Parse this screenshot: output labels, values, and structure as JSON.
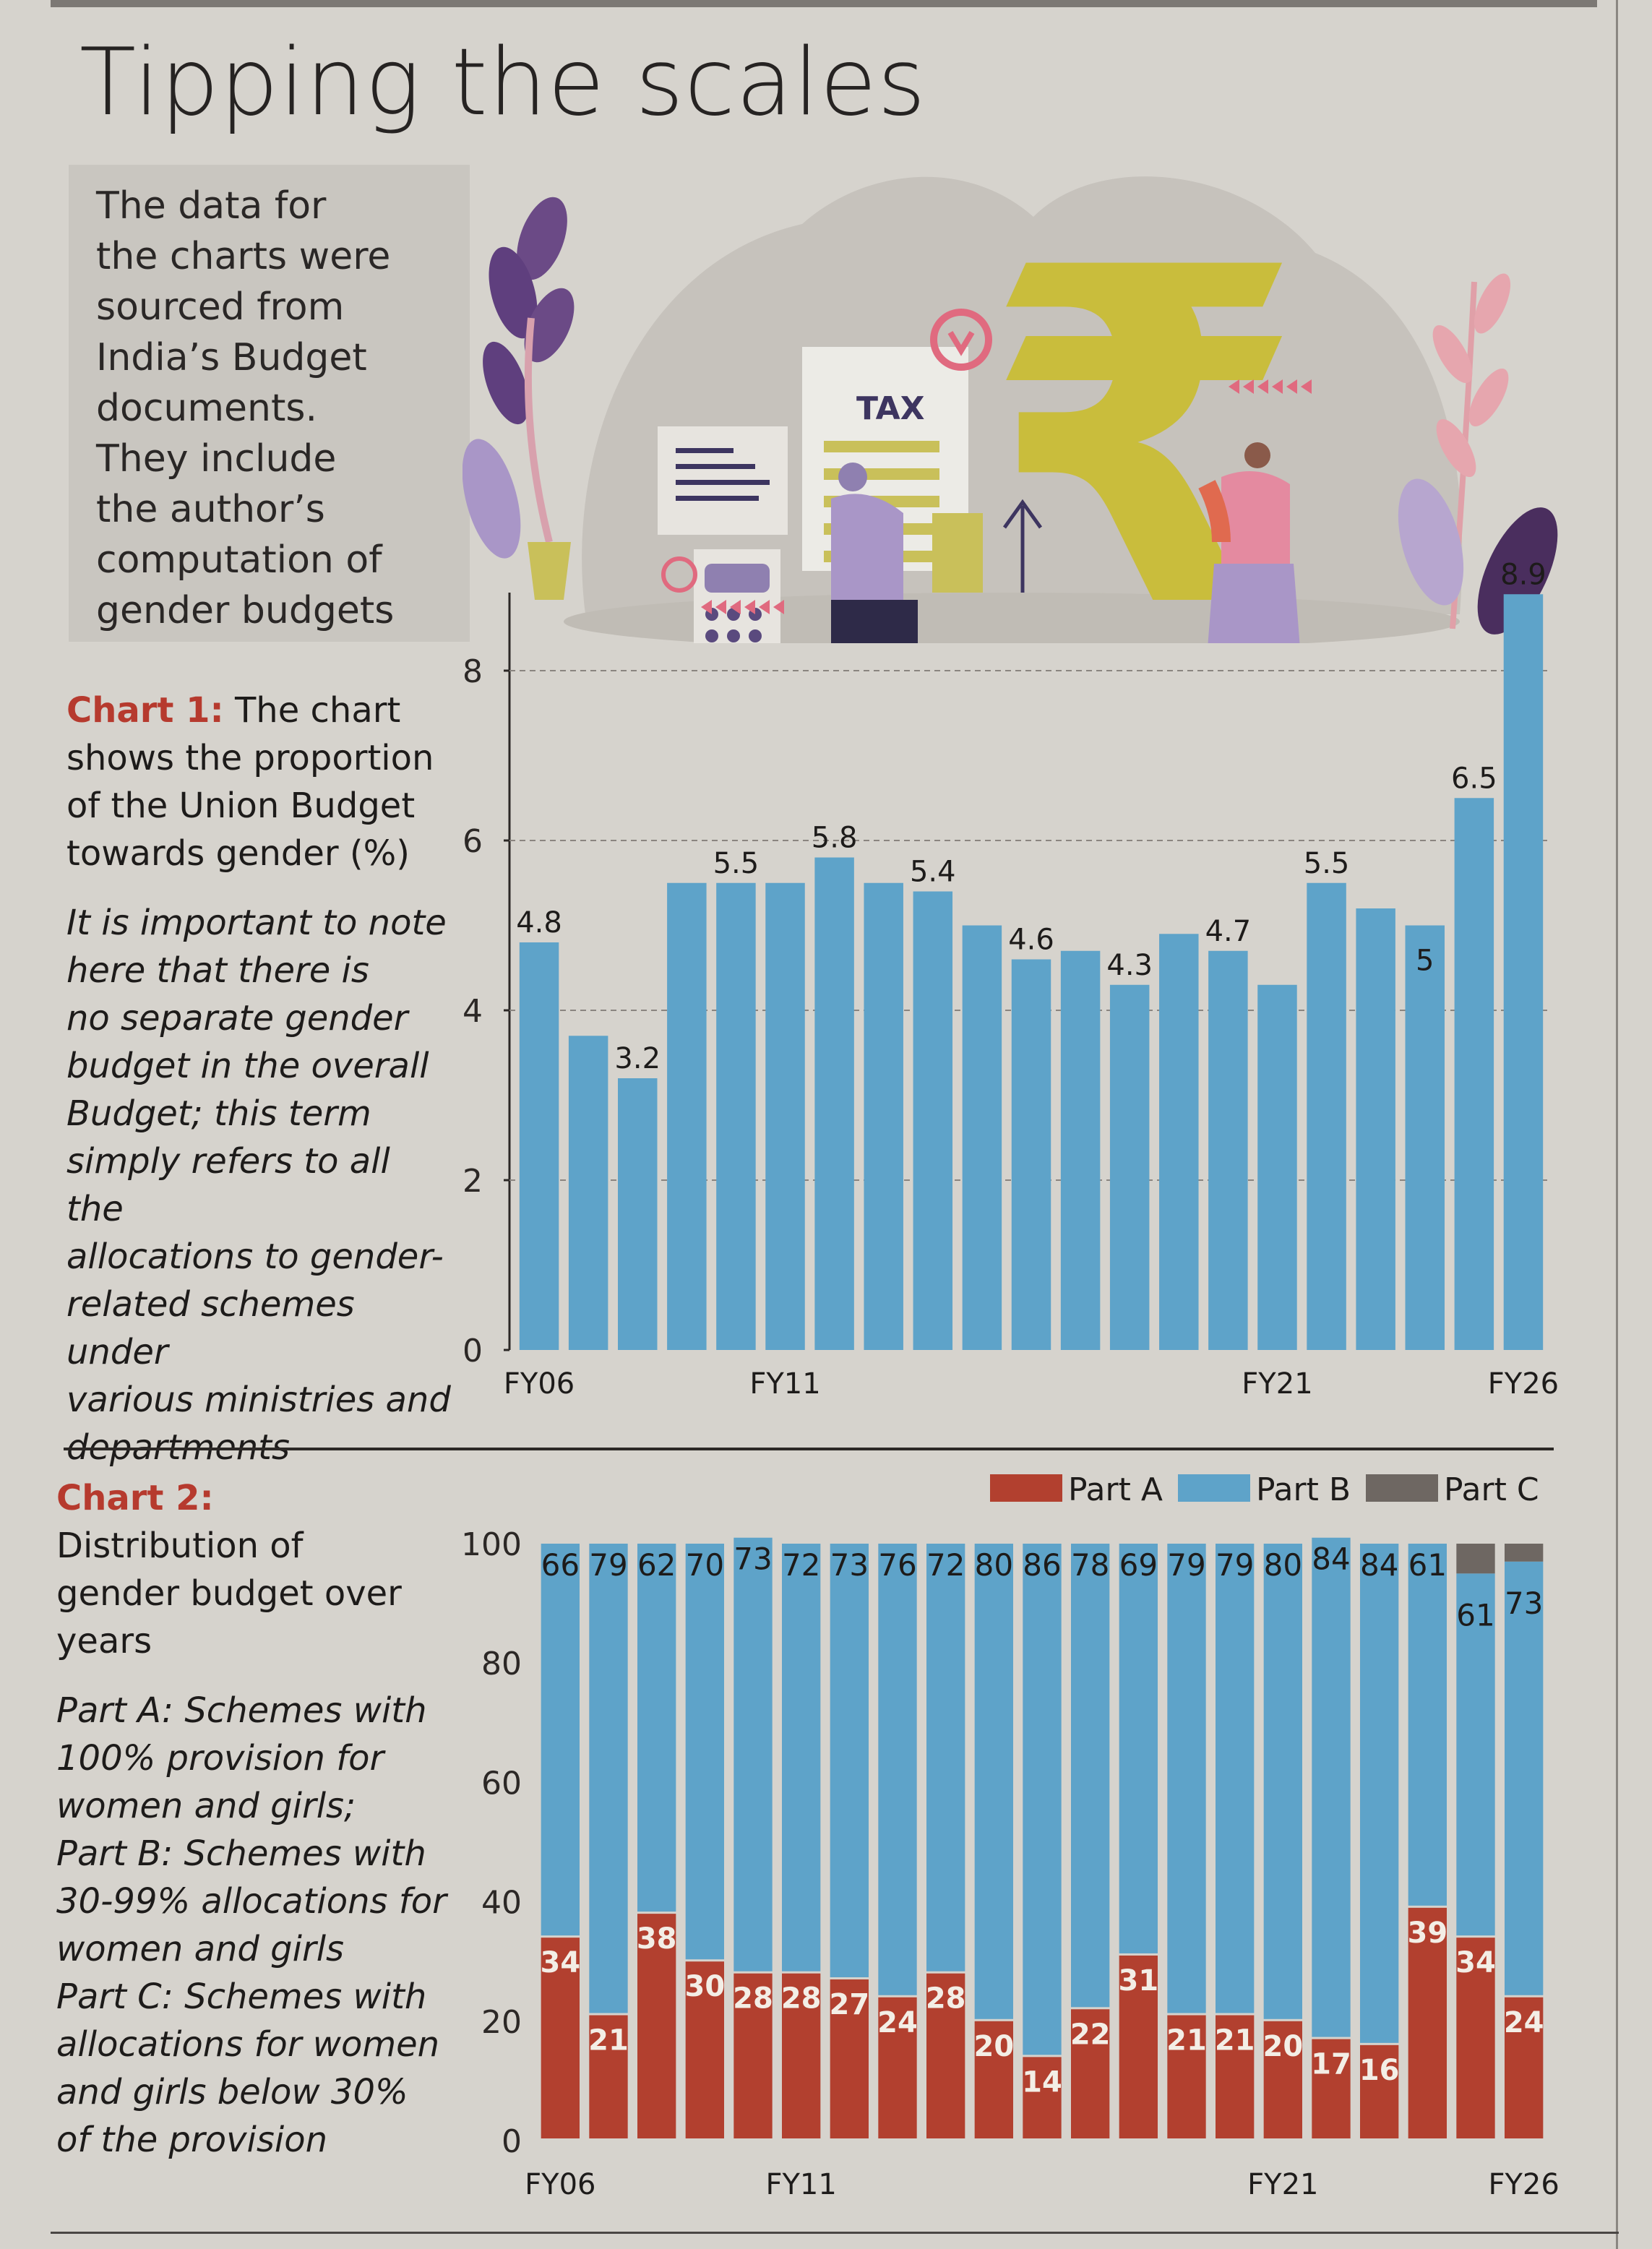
{
  "header": {
    "title": "Tipping the scales"
  },
  "source_note": {
    "lines": [
      "The data for",
      "the charts were",
      "sourced from",
      "India’s Budget",
      "documents.",
      "They include",
      "the author’s",
      "computation of",
      "gender budgets"
    ]
  },
  "illustration": {
    "tax_label": "TAX",
    "currency_symbol": "₹"
  },
  "chart1_text": {
    "label": "Chart 1:",
    "description_lines": [
      "The chart",
      "shows the proportion",
      "of  the Union Budget",
      "towards gender (%)"
    ],
    "note_lines": [
      "It is important to note",
      "here that there is",
      "no separate gender",
      "budget in the overall",
      "Budget; this term",
      "simply refers to all the",
      "allocations to gender-",
      "related schemes under",
      "various ministries and",
      "departments"
    ]
  },
  "chart2_text": {
    "label": "Chart 2:",
    "description_lines": [
      "Distribution of",
      "gender budget over",
      "years"
    ],
    "note_lines": [
      "Part A: Schemes with",
      "100% provision for",
      "women and girls;",
      "Part B: Schemes with",
      "30-99% allocations for",
      "women and girls",
      "Part C:  Schemes with",
      "allocations for women",
      "and girls below 30%",
      "of the provision"
    ]
  },
  "colors": {
    "bar_blue": "#5ea3c9",
    "part_a": "#b2402f",
    "part_b": "#5ea3c9",
    "part_c": "#6e6762",
    "accent_red": "#b63a2e"
  },
  "chart_data": [
    {
      "type": "bar",
      "title": "Proportion of the Union Budget towards gender (%)",
      "xlabel": "",
      "ylabel": "",
      "categories": [
        "FY06",
        "FY07",
        "FY08",
        "FY09",
        "FY10",
        "FY11",
        "FY12",
        "FY13",
        "FY14",
        "FY15",
        "FY16",
        "FY17",
        "FY18",
        "FY19",
        "FY20",
        "FY21",
        "FY22",
        "FY23",
        "FY24",
        "FY25",
        "FY26"
      ],
      "values": [
        4.8,
        3.7,
        3.2,
        5.5,
        5.5,
        5.5,
        5.8,
        5.5,
        5.4,
        5.0,
        4.6,
        4.7,
        4.3,
        4.9,
        4.7,
        4.3,
        5.5,
        5.2,
        5.0,
        6.5,
        8.9
      ],
      "data_labels": [
        "4.8",
        "",
        "3.2",
        "",
        "5.5",
        "",
        "5.8",
        "",
        "5.4",
        "",
        "4.6",
        "",
        "4.3",
        "",
        "4.7",
        "",
        "5.5",
        "",
        "5",
        "6.5",
        "8.9"
      ],
      "x_tick_labels": {
        "FY06": "FY06",
        "FY11": "FY11",
        "FY21": "FY21",
        "FY26": "FY26"
      },
      "yticks": [
        0,
        2,
        4,
        6,
        8
      ],
      "ylim": [
        0,
        8.9
      ],
      "grid": true
    },
    {
      "type": "bar",
      "stacked": true,
      "title": "Distribution of gender budget over years",
      "categories": [
        "FY06",
        "FY07",
        "FY08",
        "FY09",
        "FY10",
        "FY11",
        "FY12",
        "FY13",
        "FY14",
        "FY15",
        "FY16",
        "FY17",
        "FY18",
        "FY19",
        "FY20",
        "FY21",
        "FY22",
        "FY23",
        "FY24",
        "FY25",
        "FY26"
      ],
      "series": [
        {
          "name": "Part A",
          "values": [
            34,
            21,
            38,
            30,
            28,
            28,
            27,
            24,
            28,
            20,
            14,
            22,
            31,
            21,
            21,
            20,
            17,
            16,
            39,
            34,
            24
          ]
        },
        {
          "name": "Part B",
          "values": [
            66,
            79,
            62,
            70,
            73,
            72,
            73,
            76,
            72,
            80,
            86,
            78,
            69,
            79,
            79,
            80,
            84,
            84,
            61,
            61,
            73
          ]
        },
        {
          "name": "Part C",
          "values": [
            0,
            0,
            0,
            0,
            0,
            0,
            0,
            0,
            0,
            0,
            0,
            0,
            0,
            0,
            0,
            0,
            0,
            0,
            0,
            5,
            3
          ]
        }
      ],
      "legend": [
        "Part A",
        "Part B",
        "Part C"
      ],
      "legend_position": "top-right",
      "x_tick_labels": {
        "FY06": "FY06",
        "FY11": "FY11",
        "FY21": "FY21",
        "FY26": "FY26"
      },
      "yticks": [
        0,
        20,
        40,
        60,
        80,
        100
      ],
      "ylim": [
        0,
        100
      ],
      "grid": false
    }
  ]
}
